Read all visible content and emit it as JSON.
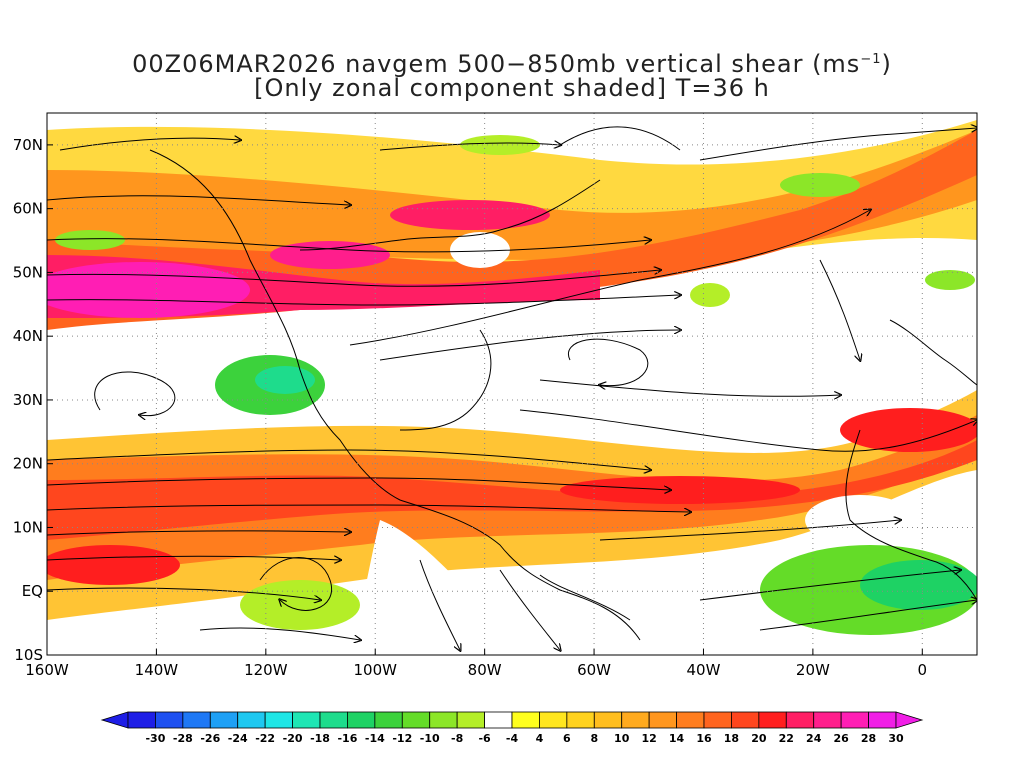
{
  "title": {
    "line1_prefix": "00Z06MAR2026 navgem 500−850mb vertical shear (ms",
    "line1_sup": "−1",
    "line1_suffix": ")",
    "line2": "[Only zonal component shaded] T=36 h"
  },
  "map": {
    "lon_labels": [
      "160W",
      "140W",
      "120W",
      "100W",
      "80W",
      "60W",
      "40W",
      "20W",
      "0"
    ],
    "lat_labels": [
      "70N",
      "60N",
      "50N",
      "40N",
      "30N",
      "20N",
      "10N",
      "EQ",
      "10S"
    ],
    "lon_range": [
      -160,
      10
    ],
    "lat_range": [
      -10,
      75
    ],
    "grid": "dotted",
    "field": "zonal component of 500-850mb vertical shear",
    "overlay": "shear streamlines with arrowheads"
  },
  "colorbar": {
    "labels": [
      "-30",
      "-28",
      "-26",
      "-24",
      "-22",
      "-20",
      "-18",
      "-16",
      "-14",
      "-12",
      "-10",
      "-8",
      "-6",
      "-4",
      "4",
      "6",
      "8",
      "10",
      "12",
      "14",
      "16",
      "18",
      "20",
      "22",
      "24",
      "26",
      "28",
      "30"
    ],
    "colors": [
      "#1e1ee6",
      "#1e50f0",
      "#1e78f5",
      "#1ea0f5",
      "#1ec8f0",
      "#1ee6e6",
      "#1ee6b4",
      "#1edc8c",
      "#1ed264",
      "#3cd23c",
      "#64dc28",
      "#8ce628",
      "#b4ee28",
      "#ffffff",
      "#ffff1e",
      "#ffe61e",
      "#ffd21e",
      "#ffbe1e",
      "#ffaa1e",
      "#ff961e",
      "#ff7d1e",
      "#ff641e",
      "#ff461e",
      "#ff1e1e",
      "#ff1e64",
      "#ff1e8c",
      "#ff1eb4",
      "#f01ee6"
    ],
    "left_arrow_color": "#1e1ee6",
    "right_arrow_color": "#f01ee6"
  }
}
